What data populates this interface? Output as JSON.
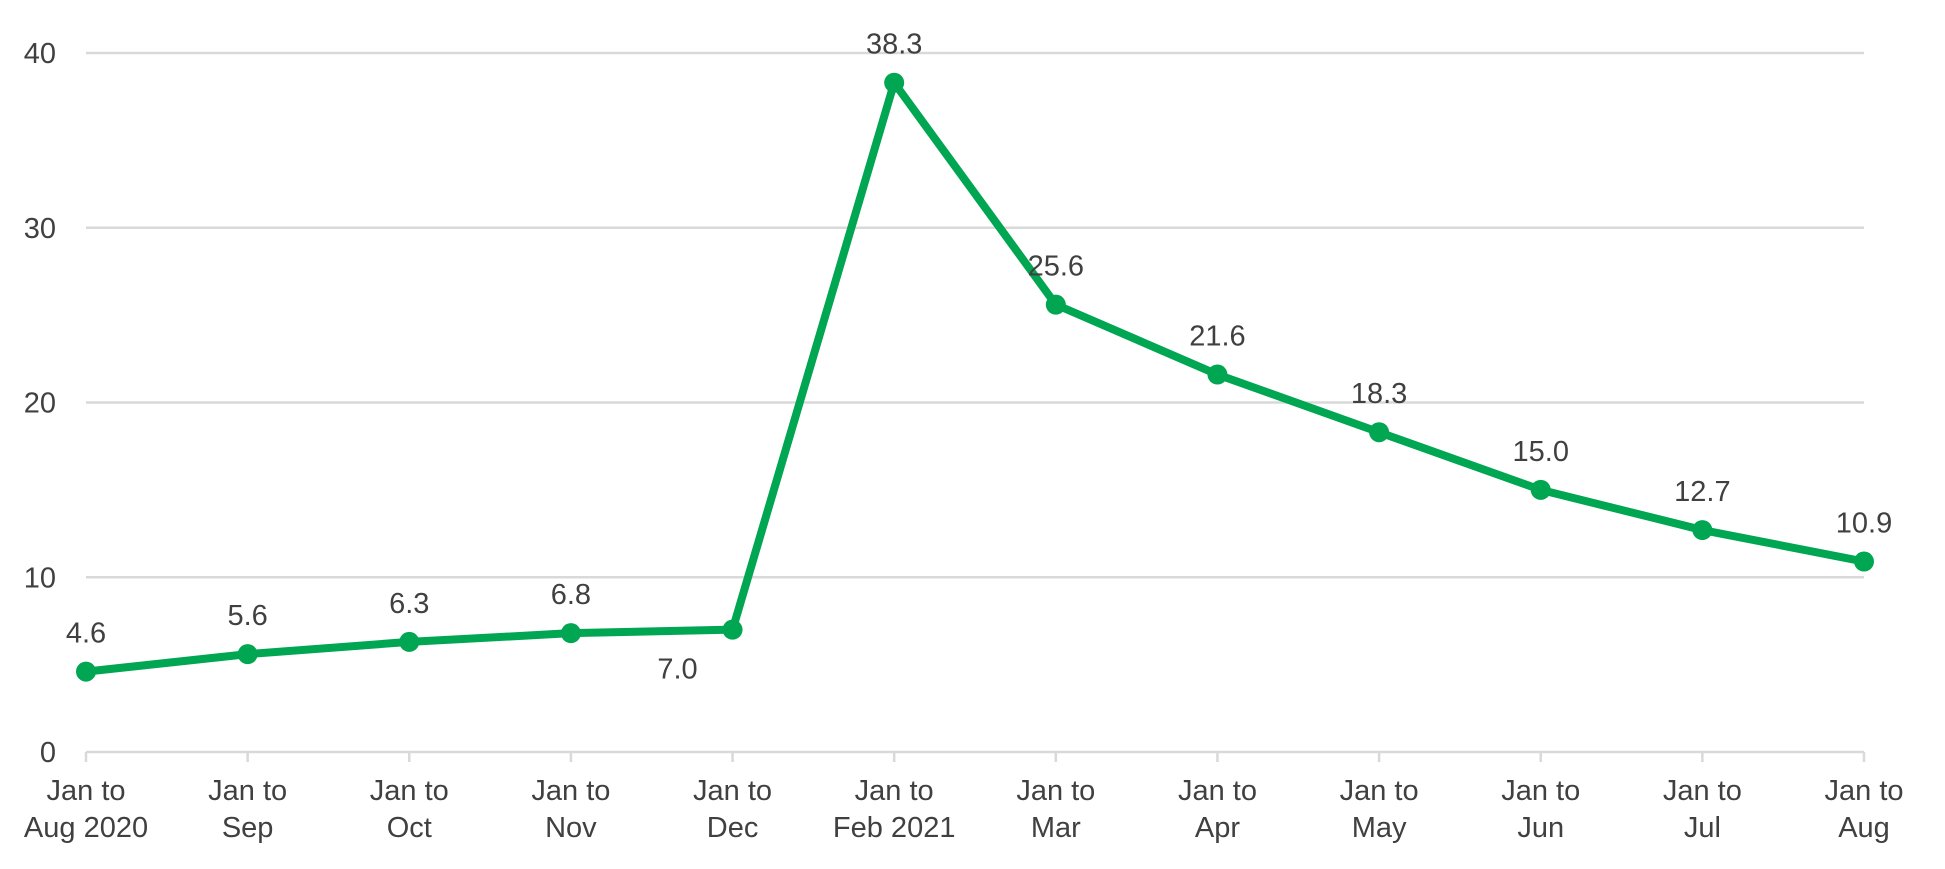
{
  "chart_data": {
    "type": "line",
    "title": "",
    "xlabel": "",
    "ylabel": "",
    "ylim": [
      0,
      40
    ],
    "yticks": [
      0,
      10,
      20,
      30,
      40
    ],
    "grid": true,
    "legend": "none",
    "categories": [
      [
        "Jan to",
        "Aug 2020"
      ],
      [
        "Jan to",
        "Sep"
      ],
      [
        "Jan to",
        "Oct"
      ],
      [
        "Jan to",
        "Nov"
      ],
      [
        "Jan to",
        "Dec"
      ],
      [
        "Jan to",
        "Feb 2021"
      ],
      [
        "Jan to",
        "Mar"
      ],
      [
        "Jan to",
        "Apr"
      ],
      [
        "Jan to",
        "May"
      ],
      [
        "Jan to",
        "Jun"
      ],
      [
        "Jan to",
        "Jul"
      ],
      [
        "Jan to",
        "Aug"
      ]
    ],
    "series": [
      {
        "color": "#00a651",
        "values": [
          4.6,
          5.6,
          6.3,
          6.8,
          7.0,
          38.3,
          25.6,
          21.6,
          18.3,
          15.0,
          12.7,
          10.9
        ],
        "labels": [
          "4.6",
          "5.6",
          "6.3",
          "6.8",
          "7.0",
          "38.3",
          "25.6",
          "21.6",
          "18.3",
          "15.0",
          "12.7",
          "10.9"
        ]
      }
    ]
  }
}
